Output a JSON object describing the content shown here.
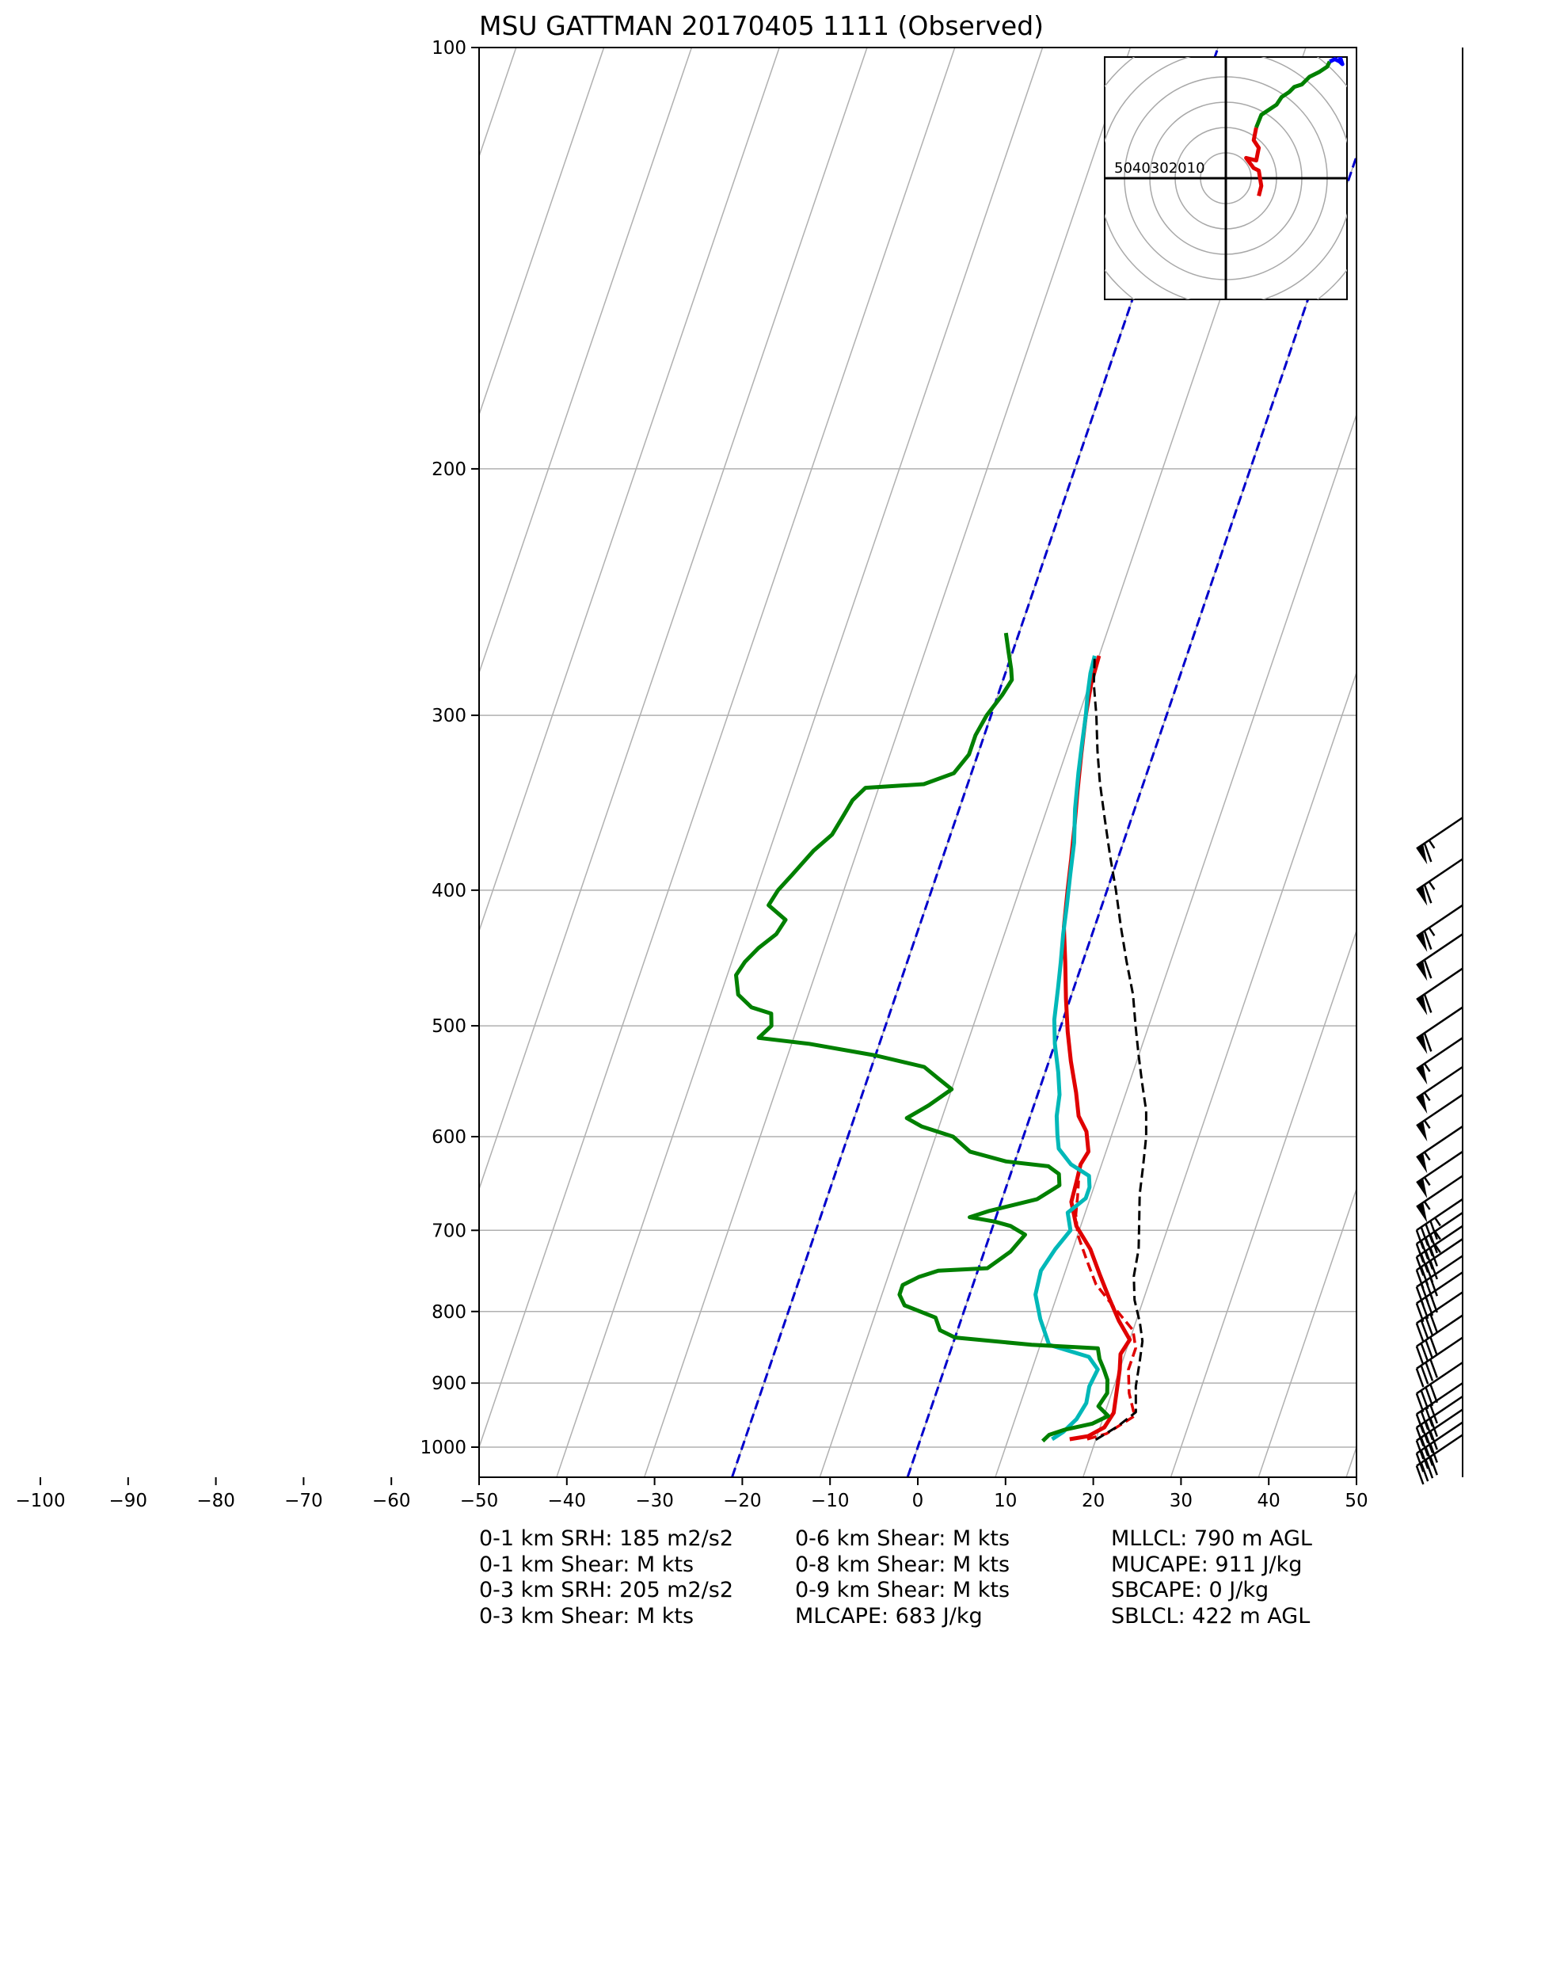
{
  "chart_data": {
    "type": "line",
    "subtype": "skew-T log-P sounding",
    "title": "MSU GATTMAN 20170405 1111   (Observed)",
    "x_ticks": [
      -100,
      -90,
      -80,
      -70,
      -60,
      -50,
      -40,
      -30,
      -20,
      -10,
      0,
      10,
      20,
      30,
      40,
      50
    ],
    "xlim": [
      -50,
      50
    ],
    "y_ticks": [
      100,
      200,
      300,
      400,
      500,
      600,
      700,
      800,
      900,
      1000
    ],
    "ylim": [
      1050,
      100
    ],
    "y_scale": "log",
    "grid": true,
    "series": [
      {
        "color": "#e00000",
        "style": "solid",
        "points": [
          [
            17,
            987
          ],
          [
            19,
            982
          ],
          [
            20.5,
            968
          ],
          [
            21,
            945
          ],
          [
            20.5,
            912
          ],
          [
            20,
            880
          ],
          [
            19.5,
            858
          ],
          [
            20,
            838
          ],
          [
            18,
            812
          ],
          [
            16,
            782
          ],
          [
            14,
            752
          ],
          [
            12,
            722
          ],
          [
            9.5,
            695
          ],
          [
            8,
            668
          ],
          [
            7.8,
            645
          ],
          [
            7.6,
            628
          ],
          [
            8,
            615
          ],
          [
            7,
            595
          ],
          [
            5.5,
            580
          ],
          [
            4.3,
            558
          ],
          [
            2.5,
            530
          ],
          [
            1,
            505
          ],
          [
            -0.5,
            478
          ],
          [
            -2,
            450
          ],
          [
            -3.5,
            425
          ],
          [
            -4.5,
            400
          ],
          [
            -5.3,
            380
          ],
          [
            -6.2,
            360
          ],
          [
            -7.2,
            340
          ],
          [
            -8.2,
            320
          ],
          [
            -9.2,
            300
          ],
          [
            -9.8,
            285
          ],
          [
            -10,
            272
          ]
        ]
      },
      {
        "color": "#e00000",
        "style": "dashed",
        "points": [
          [
            19,
            987
          ],
          [
            21,
            978
          ],
          [
            23.5,
            950
          ],
          [
            22,
            915
          ],
          [
            21,
            880
          ],
          [
            21,
            850
          ],
          [
            20,
            825
          ],
          [
            17,
            795
          ],
          [
            14,
            765
          ],
          [
            12,
            735
          ],
          [
            10,
            705
          ],
          [
            9,
            682
          ],
          [
            8.5,
            662
          ],
          [
            8,
            645
          ]
        ]
      },
      {
        "color": "#00b8b8",
        "style": "solid",
        "points": [
          [
            15,
            987
          ],
          [
            16,
            975
          ],
          [
            17,
            955
          ],
          [
            17.5,
            930
          ],
          [
            17.2,
            905
          ],
          [
            17.5,
            880
          ],
          [
            16,
            862
          ],
          [
            11,
            845
          ],
          [
            9,
            810
          ],
          [
            7.5,
            778
          ],
          [
            7.2,
            748
          ],
          [
            8,
            722
          ],
          [
            9,
            700
          ],
          [
            8,
            680
          ],
          [
            9.5,
            664
          ],
          [
            9.5,
            652
          ],
          [
            9,
            640
          ],
          [
            6.5,
            628
          ],
          [
            4.5,
            612
          ],
          [
            3.8,
            598
          ],
          [
            3,
            580
          ],
          [
            2.5,
            560
          ],
          [
            1.5,
            540
          ],
          [
            0,
            515
          ],
          [
            -1,
            495
          ],
          [
            -1.8,
            470
          ],
          [
            -2.5,
            450
          ],
          [
            -3.3,
            430
          ],
          [
            -4,
            410
          ],
          [
            -4.8,
            390
          ],
          [
            -5.6,
            370
          ],
          [
            -6.8,
            350
          ],
          [
            -7.8,
            330
          ],
          [
            -8.5,
            315
          ],
          [
            -9.2,
            300
          ],
          [
            -9.8,
            290
          ],
          [
            -10.3,
            280
          ],
          [
            -10.5,
            272
          ]
        ]
      },
      {
        "color": "#000000",
        "style": "dashed",
        "points": [
          [
            20,
            988
          ],
          [
            22,
            966
          ],
          [
            23.5,
            944
          ],
          [
            22.5,
            905
          ],
          [
            22,
            870
          ],
          [
            21.5,
            840
          ],
          [
            20.5,
            815
          ],
          [
            19,
            785
          ],
          [
            18,
            755
          ],
          [
            17.5,
            722
          ],
          [
            16.5,
            690
          ],
          [
            15.5,
            660
          ],
          [
            14.8,
            630
          ],
          [
            14,
            600
          ],
          [
            13,
            575
          ],
          [
            11.5,
            550
          ],
          [
            10,
            525
          ],
          [
            8.5,
            500
          ],
          [
            7,
            475
          ],
          [
            5,
            450
          ],
          [
            3,
            425
          ],
          [
            1,
            400
          ],
          [
            -1,
            378
          ],
          [
            -3,
            356
          ],
          [
            -5,
            335
          ],
          [
            -6.5,
            318
          ],
          [
            -8,
            300
          ],
          [
            -9.5,
            285
          ],
          [
            -10.5,
            272
          ]
        ]
      },
      {
        "color": "#008000",
        "style": "solid",
        "points": [
          [
            14,
            990
          ],
          [
            14.5,
            980
          ],
          [
            16,
            972
          ],
          [
            19,
            962
          ],
          [
            20.5,
            950
          ],
          [
            19,
            935
          ],
          [
            19.5,
            915
          ],
          [
            19,
            895
          ],
          [
            18.2,
            880
          ],
          [
            17.3,
            865
          ],
          [
            16.7,
            850
          ],
          [
            9,
            845
          ],
          [
            0,
            835
          ],
          [
            -2,
            825
          ],
          [
            -3,
            808
          ],
          [
            -7,
            792
          ],
          [
            -8,
            778
          ],
          [
            -8,
            766
          ],
          [
            -6.5,
            756
          ],
          [
            -4.5,
            748
          ],
          [
            1,
            745
          ],
          [
            2,
            735
          ],
          [
            3,
            725
          ],
          [
            4,
            705
          ],
          [
            2,
            695
          ],
          [
            0,
            690
          ],
          [
            -3,
            685
          ],
          [
            -1,
            678
          ],
          [
            4,
            665
          ],
          [
            6,
            650
          ],
          [
            5.5,
            638
          ],
          [
            4,
            630
          ],
          [
            -1,
            625
          ],
          [
            -5.5,
            615
          ],
          [
            -8,
            600
          ],
          [
            -12,
            590
          ],
          [
            -14,
            582
          ],
          [
            -12,
            570
          ],
          [
            -10,
            555
          ],
          [
            -12,
            545
          ],
          [
            -14,
            535
          ],
          [
            -20,
            525
          ],
          [
            -28,
            515
          ],
          [
            -34,
            510
          ],
          [
            -33,
            500
          ],
          [
            -33.5,
            490
          ],
          [
            -36,
            485
          ],
          [
            -38,
            475
          ],
          [
            -39,
            460
          ],
          [
            -38.5,
            450
          ],
          [
            -37.5,
            440
          ],
          [
            -36,
            430
          ],
          [
            -35.5,
            420
          ],
          [
            -38,
            410
          ],
          [
            -37.5,
            400
          ],
          [
            -36.5,
            390
          ],
          [
            -35,
            375
          ],
          [
            -33.5,
            365
          ],
          [
            -33,
            355
          ],
          [
            -32.5,
            345
          ],
          [
            -31.5,
            338
          ],
          [
            -25,
            336
          ],
          [
            -22,
            330
          ],
          [
            -21,
            320
          ],
          [
            -21,
            310
          ],
          [
            -20.5,
            300
          ],
          [
            -19.5,
            290
          ],
          [
            -19,
            283
          ],
          [
            -19.5,
            278
          ],
          [
            -20.5,
            270
          ],
          [
            -21.5,
            262
          ]
        ]
      }
    ],
    "hodograph": {
      "ring_labels": [
        "50",
        "40",
        "30",
        "20",
        "10"
      ],
      "ring_spacing_kts": 10,
      "traces": [
        {
          "color": "#e00000",
          "points": [
            [
              13,
              -7
            ],
            [
              14,
              -3
            ],
            [
              13,
              3
            ],
            [
              11,
              4
            ],
            [
              8,
              8
            ],
            [
              12,
              7
            ],
            [
              13,
              12
            ],
            [
              11,
              15
            ],
            [
              12,
              20
            ]
          ]
        },
        {
          "color": "#008000",
          "points": [
            [
              12,
              20
            ],
            [
              14,
              25
            ],
            [
              17,
              27
            ],
            [
              20,
              29
            ],
            [
              22,
              32
            ],
            [
              25,
              34
            ],
            [
              27,
              36
            ],
            [
              30,
              37
            ],
            [
              33,
              40
            ],
            [
              37,
              42
            ],
            [
              40,
              44
            ],
            [
              41,
              46
            ]
          ]
        },
        {
          "color": "#0000ff",
          "points": [
            [
              41,
              46
            ],
            [
              43,
              47
            ],
            [
              45,
              46
            ],
            [
              46,
              45
            ],
            [
              45,
              48
            ],
            [
              43,
              49
            ],
            [
              44,
              51
            ],
            [
              42,
              52
            ],
            [
              41,
              53
            ],
            [
              40,
              54
            ]
          ]
        }
      ]
    },
    "wind_barbs": [
      {
        "p": 355,
        "dir": 235,
        "spd": 65
      },
      {
        "p": 380,
        "dir": 235,
        "spd": 65
      },
      {
        "p": 410,
        "dir": 235,
        "spd": 65
      },
      {
        "p": 430,
        "dir": 235,
        "spd": 60
      },
      {
        "p": 455,
        "dir": 235,
        "spd": 60
      },
      {
        "p": 485,
        "dir": 235,
        "spd": 60
      },
      {
        "p": 510,
        "dir": 235,
        "spd": 55
      },
      {
        "p": 535,
        "dir": 235,
        "spd": 55
      },
      {
        "p": 560,
        "dir": 235,
        "spd": 55
      },
      {
        "p": 590,
        "dir": 235,
        "spd": 55
      },
      {
        "p": 615,
        "dir": 235,
        "spd": 55
      },
      {
        "p": 640,
        "dir": 235,
        "spd": 55
      },
      {
        "p": 665,
        "dir": 235,
        "spd": 45
      },
      {
        "p": 680,
        "dir": 235,
        "spd": 45
      },
      {
        "p": 695,
        "dir": 235,
        "spd": 45
      },
      {
        "p": 710,
        "dir": 235,
        "spd": 40
      },
      {
        "p": 730,
        "dir": 235,
        "spd": 40
      },
      {
        "p": 750,
        "dir": 235,
        "spd": 40
      },
      {
        "p": 775,
        "dir": 235,
        "spd": 40
      },
      {
        "p": 805,
        "dir": 235,
        "spd": 40
      },
      {
        "p": 835,
        "dir": 235,
        "spd": 40
      },
      {
        "p": 870,
        "dir": 235,
        "spd": 40
      },
      {
        "p": 900,
        "dir": 235,
        "spd": 40
      },
      {
        "p": 920,
        "dir": 235,
        "spd": 40
      },
      {
        "p": 940,
        "dir": 235,
        "spd": 40
      },
      {
        "p": 960,
        "dir": 235,
        "spd": 40
      },
      {
        "p": 980,
        "dir": 235,
        "spd": 40
      }
    ]
  },
  "stats": {
    "col1": [
      "0-1 km SRH: 185 m2/s2",
      "0-1 km Shear: M kts",
      "0-3 km SRH: 205 m2/s2",
      "0-3 km Shear: M kts"
    ],
    "col2": [
      "0-6 km Shear: M kts",
      "0-8 km Shear: M kts",
      "0-9 km Shear: M kts",
      "MLCAPE: 683 J/kg"
    ],
    "col3": [
      "MLLCL: 790 m AGL",
      "MUCAPE: 911 J/kg",
      "SBCAPE: 0 J/kg",
      "SBLCL: 422 m AGL"
    ]
  }
}
